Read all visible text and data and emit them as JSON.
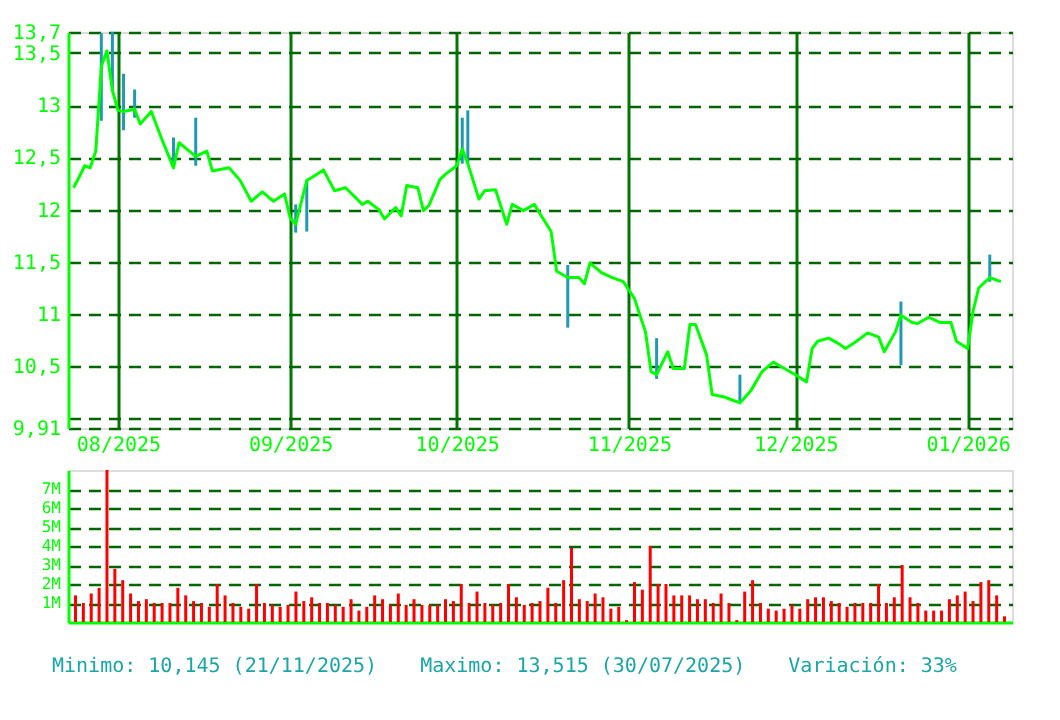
{
  "chart_data": [
    {
      "type": "line",
      "grid": true,
      "marker": "none",
      "line_style": "solid",
      "x": [
        "2025-07-24",
        "2025-07-25",
        "2025-07-26",
        "2025-07-27",
        "2025-07-28",
        "2025-07-29",
        "2025-07-30",
        "2025-07-31",
        "2025-08-01",
        "2025-08-02",
        "2025-08-04",
        "2025-08-05",
        "2025-08-07",
        "2025-08-09",
        "2025-08-11",
        "2025-08-12",
        "2025-08-15",
        "2025-08-17",
        "2025-08-18",
        "2025-08-21",
        "2025-08-23",
        "2025-08-25",
        "2025-08-27",
        "2025-08-29",
        "2025-08-31",
        "2025-09-01",
        "2025-09-02",
        "2025-09-04",
        "2025-09-05",
        "2025-09-07",
        "2025-09-09",
        "2025-09-11",
        "2025-09-14",
        "2025-09-15",
        "2025-09-17",
        "2025-09-18",
        "2025-09-20",
        "2025-09-21",
        "2025-09-22",
        "2025-09-24",
        "2025-09-25",
        "2025-09-26",
        "2025-09-28",
        "2025-09-29",
        "2025-10-01",
        "2025-10-02",
        "2025-10-03",
        "2025-10-05",
        "2025-10-06",
        "2025-10-08",
        "2025-10-10",
        "2025-10-11",
        "2025-10-13",
        "2025-10-15",
        "2025-10-16",
        "2025-10-18",
        "2025-10-19",
        "2025-10-21",
        "2025-10-23",
        "2025-10-24",
        "2025-10-25",
        "2025-10-27",
        "2025-10-29",
        "2025-10-31",
        "2025-11-02",
        "2025-11-04",
        "2025-11-05",
        "2025-11-06",
        "2025-11-08",
        "2025-11-09",
        "2025-11-11",
        "2025-11-12",
        "2025-11-13",
        "2025-11-15",
        "2025-11-16",
        "2025-11-18",
        "2025-11-19",
        "2025-11-21",
        "2025-11-23",
        "2025-11-25",
        "2025-11-27",
        "2025-11-29",
        "2025-12-01",
        "2025-12-03",
        "2025-12-04",
        "2025-12-05",
        "2025-12-07",
        "2025-12-09",
        "2025-12-10",
        "2025-12-12",
        "2025-12-14",
        "2025-12-16",
        "2025-12-17",
        "2025-12-19",
        "2025-12-20",
        "2025-12-22",
        "2025-12-23",
        "2025-12-25",
        "2025-12-27",
        "2025-12-29",
        "2025-12-30",
        "2026-01-01",
        "2026-01-02",
        "2026-01-03",
        "2026-01-05",
        "2026-01-07"
      ],
      "xlim": [
        "2025-07-23",
        "2026-01-09"
      ],
      "xticks": [
        {
          "value": "2025-08-01",
          "label": "08/2025"
        },
        {
          "value": "2025-09-01",
          "label": "09/2025"
        },
        {
          "value": "2025-10-01",
          "label": "10/2025"
        },
        {
          "value": "2025-11-01",
          "label": "11/2025"
        },
        {
          "value": "2025-12-01",
          "label": "12/2025"
        },
        {
          "value": "2026-01-01",
          "label": "01/2026"
        }
      ],
      "ylim": [
        9.91,
        13.7
      ],
      "yticks": [
        {
          "value": 9.91,
          "label": "9,91"
        },
        {
          "value": 10,
          "label": null
        },
        {
          "value": 10.5,
          "label": "10,5"
        },
        {
          "value": 11,
          "label": "11"
        },
        {
          "value": 11.5,
          "label": "11,5"
        },
        {
          "value": 12,
          "label": "12"
        },
        {
          "value": 12.5,
          "label": "12,5"
        },
        {
          "value": 13,
          "label": "13"
        },
        {
          "value": 13.5,
          "label": "13,5"
        },
        {
          "value": 13.7,
          "label": "13,7"
        }
      ],
      "series": [
        {
          "color": "#00ff00",
          "values": [
            12.21,
            12.31,
            12.42,
            12.4,
            12.56,
            13.37,
            13.52,
            13.14,
            12.95,
            12.94,
            12.96,
            12.82,
            12.94,
            12.66,
            12.4,
            12.64,
            12.51,
            12.56,
            12.37,
            12.4,
            12.28,
            12.08,
            12.17,
            12.08,
            12.15,
            11.92,
            11.86,
            12.28,
            12.31,
            12.38,
            12.18,
            12.21,
            12.05,
            12.08,
            12.0,
            11.91,
            12.02,
            11.94,
            12.23,
            12.21,
            11.99,
            12.04,
            12.29,
            12.34,
            12.42,
            12.58,
            12.44,
            12.1,
            12.18,
            12.19,
            11.86,
            12.05,
            11.99,
            12.05,
            11.96,
            11.79,
            11.41,
            11.35,
            11.35,
            11.29,
            11.49,
            11.4,
            11.35,
            11.31,
            11.15,
            10.83,
            10.45,
            10.42,
            10.64,
            10.48,
            10.48,
            10.9,
            10.9,
            10.61,
            10.23,
            10.21,
            10.19,
            10.15,
            10.27,
            10.45,
            10.54,
            10.48,
            10.42,
            10.35,
            10.67,
            10.74,
            10.77,
            10.71,
            10.67,
            10.74,
            10.82,
            10.78,
            10.64,
            10.83,
            10.99,
            10.92,
            10.91,
            10.97,
            10.92,
            10.92,
            10.74,
            10.67,
            11.03,
            11.25,
            11.35,
            11.31
          ],
          "errors": [
            null,
            null,
            null,
            null,
            null,
            [
              12.85,
              13.69
            ],
            null,
            [
              13.14,
              13.7
            ],
            null,
            [
              12.76,
              13.3
            ],
            [
              12.88,
              13.15
            ],
            null,
            null,
            null,
            [
              12.4,
              12.69
            ],
            null,
            [
              12.42,
              12.88
            ],
            null,
            null,
            null,
            null,
            null,
            null,
            null,
            null,
            null,
            [
              11.78,
              12.05
            ],
            [
              11.79,
              12.28
            ],
            null,
            null,
            null,
            null,
            null,
            null,
            null,
            null,
            null,
            null,
            null,
            null,
            null,
            null,
            null,
            null,
            null,
            [
              12.44,
              12.88
            ],
            [
              12.44,
              12.95
            ],
            null,
            null,
            null,
            null,
            null,
            null,
            null,
            null,
            null,
            null,
            [
              10.87,
              11.47
            ],
            null,
            null,
            null,
            null,
            null,
            null,
            null,
            null,
            null,
            [
              10.38,
              10.77
            ],
            null,
            null,
            null,
            null,
            null,
            null,
            null,
            null,
            null,
            [
              10.15,
              10.42
            ],
            null,
            null,
            null,
            null,
            null,
            null,
            null,
            null,
            null,
            null,
            null,
            null,
            null,
            null,
            null,
            null,
            [
              10.51,
              11.12
            ],
            null,
            null,
            null,
            null,
            null,
            null,
            null,
            null,
            null,
            [
              11.31,
              11.57
            ],
            null
          ]
        }
      ]
    },
    {
      "type": "bar",
      "grid": "y",
      "tick_labels": "y",
      "categories": [
        null,
        null,
        null,
        null,
        null,
        null,
        null,
        null,
        null,
        null,
        null,
        null,
        null,
        null,
        null,
        null,
        null,
        null,
        null,
        null,
        null,
        null,
        null,
        null,
        null,
        null,
        null,
        null,
        null,
        null,
        null,
        null,
        null,
        null,
        null,
        null,
        null,
        null,
        null,
        null,
        null,
        null,
        null,
        null,
        null,
        null,
        null,
        null,
        null,
        null,
        null,
        null,
        null,
        null,
        null,
        null,
        null,
        null,
        null,
        null,
        null,
        null,
        null,
        null,
        null,
        null,
        null,
        null,
        null,
        null,
        null,
        null,
        null,
        null,
        null,
        null,
        null,
        null,
        null,
        null,
        null,
        null,
        null,
        null,
        null,
        null,
        null,
        null,
        null,
        null,
        null,
        null,
        null,
        null,
        null,
        null,
        null,
        null,
        null,
        null,
        null,
        null,
        null,
        null,
        null,
        null,
        null,
        null,
        null,
        null,
        null,
        null,
        null,
        null,
        null,
        null,
        null,
        null,
        null
      ],
      "ylim": [
        0,
        8
      ],
      "yticks": [
        {
          "value": 1,
          "label": "1M"
        },
        {
          "value": 2,
          "label": "2M"
        },
        {
          "value": 3,
          "label": "3M"
        },
        {
          "value": 4,
          "label": "4M"
        },
        {
          "value": 5,
          "label": "5M"
        },
        {
          "value": 6,
          "label": "6M"
        },
        {
          "value": 7,
          "label": "7M"
        }
      ],
      "series": [
        {
          "color": "#ff0000",
          "values": [
            1.4,
            1.0,
            1.5,
            1.8,
            8.0,
            2.8,
            2.2,
            1.5,
            1.1,
            1.2,
            1.0,
            1.0,
            1.0,
            1.8,
            1.4,
            1.1,
            1.0,
            0.8,
            2.0,
            1.4,
            1.0,
            0.8,
            0.7,
            2.0,
            1.0,
            0.9,
            0.8,
            0.9,
            1.6,
            1.1,
            1.3,
            1.0,
            1.0,
            0.9,
            0.8,
            1.2,
            0.6,
            0.8,
            1.4,
            1.2,
            0.9,
            1.5,
            0.9,
            1.2,
            0.9,
            0.9,
            0.9,
            1.2,
            1.1,
            2.0,
            1.0,
            1.6,
            1.0,
            0.9,
            1.0,
            2.0,
            1.3,
            0.9,
            1.0,
            1.1,
            1.8,
            1.0,
            2.2,
            3.9,
            1.2,
            1.1,
            1.5,
            1.3,
            0.7,
            0.8,
            0.1,
            2.1,
            1.7,
            4.0,
            2.0,
            2.0,
            1.4,
            1.4,
            1.4,
            1.2,
            1.2,
            1.0,
            1.5,
            1.0,
            0.1,
            1.6,
            2.2,
            1.0,
            0.7,
            0.6,
            0.7,
            0.9,
            0.7,
            1.2,
            1.3,
            1.3,
            1.1,
            1.0,
            0.8,
            1.0,
            1.0,
            1.0,
            2.0,
            1.0,
            1.3,
            3.0,
            1.3,
            1.0,
            0.6,
            0.6,
            0.6,
            1.2,
            1.4,
            1.6,
            1.1,
            2.1,
            2.2,
            1.4,
            0.3
          ]
        }
      ],
      "annotations": [
        "Minimo: 10,145 (21/11/2025)",
        "Maximo: 13,515 (30/07/2025)",
        "Variación: 33%"
      ]
    }
  ]
}
